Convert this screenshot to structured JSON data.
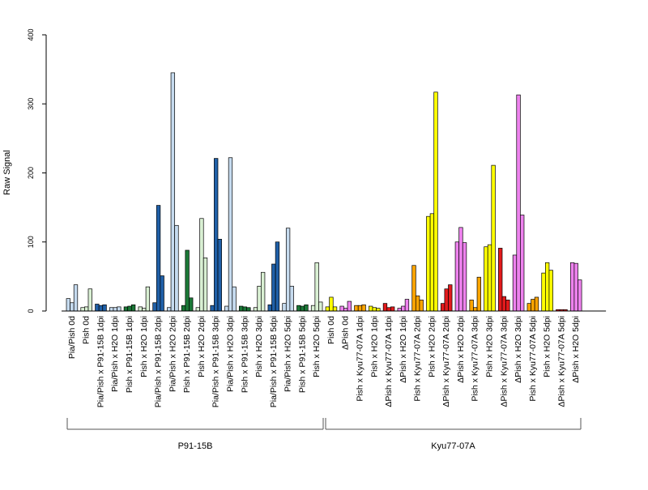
{
  "chart_data": {
    "type": "bar",
    "ylabel": "Raw Signal",
    "ylim": [
      0,
      400
    ],
    "yticks": [
      "0",
      "100",
      "200",
      "300",
      "400"
    ],
    "grid": false,
    "groups": [
      {
        "label": "P91-15B"
      },
      {
        "label": "Kyu77-07A"
      }
    ],
    "colors": {
      "light_blue": "#c6dbef",
      "dark_blue": "#2060a8",
      "light_green": "#d9f0d3",
      "dark_green": "#1b7837",
      "yellow": "#ffff00",
      "violet": "#ee82ee",
      "orange": "#ffa500",
      "red": "#e31a1c"
    },
    "categories": [
      {
        "label": "Pia/Pish 0d",
        "color": "light_blue",
        "values": [
          18,
          12,
          38
        ]
      },
      {
        "label": "Pish 0d",
        "color": "light_green",
        "values": [
          5,
          6,
          32
        ]
      },
      {
        "label": "Pia/Pish x P91-15B 1dpi",
        "color": "dark_blue",
        "values": [
          10,
          8,
          9
        ]
      },
      {
        "label": "Pia/Pish x H2O 1dpi",
        "color": "light_blue",
        "values": [
          5,
          5,
          6
        ]
      },
      {
        "label": "Pish x P91-15B 1dpi",
        "color": "dark_green",
        "values": [
          6,
          7,
          9
        ]
      },
      {
        "label": "Pish x H2O 1dpi",
        "color": "light_green",
        "values": [
          6,
          4,
          35
        ]
      },
      {
        "label": "Pia/Pish x P91-15B 2dpi",
        "color": "dark_blue",
        "values": [
          12,
          153,
          51
        ]
      },
      {
        "label": "Pia/Pish x H2O 2dpi",
        "color": "light_blue",
        "values": [
          5,
          345,
          124
        ]
      },
      {
        "label": "Pish x P91-15B 2dpi",
        "color": "dark_green",
        "values": [
          8,
          88,
          19
        ]
      },
      {
        "label": "Pish x H2O 2dpi",
        "color": "light_green",
        "values": [
          5,
          134,
          77
        ]
      },
      {
        "label": "Pia/Pish x P91-15B 3dpi",
        "color": "dark_blue",
        "values": [
          8,
          221,
          104
        ]
      },
      {
        "label": "Pia/Pish x H2O 3dpi",
        "color": "light_blue",
        "values": [
          7,
          222,
          35
        ]
      },
      {
        "label": "Pish x P91-15B 3dpi",
        "color": "dark_green",
        "values": [
          7,
          6,
          5
        ]
      },
      {
        "label": "Pish x H2O 3dpi",
        "color": "light_green",
        "values": [
          5,
          36,
          56
        ]
      },
      {
        "label": "Pia/Pish x P91-15B 5dpi",
        "color": "dark_blue",
        "values": [
          9,
          68,
          100
        ]
      },
      {
        "label": "Pia/Pish x H2O 5dpi",
        "color": "light_blue",
        "values": [
          11,
          120,
          36
        ]
      },
      {
        "label": "Pish x P91-15B 5dpi",
        "color": "dark_green",
        "values": [
          8,
          7,
          9
        ]
      },
      {
        "label": "Pish x H2O 5dpi",
        "color": "light_green",
        "values": [
          8,
          70,
          13
        ]
      },
      {
        "label": "Pish 0d",
        "color": "yellow",
        "values": [
          6,
          20,
          6
        ]
      },
      {
        "label": "ΔPish 0d",
        "color": "violet",
        "values": [
          7,
          4,
          14
        ]
      },
      {
        "label": "Pish x Kyu77-07A 1dpi",
        "color": "orange",
        "values": [
          8,
          8,
          9
        ]
      },
      {
        "label": "Pish x H2O 1dpi",
        "color": "yellow",
        "values": [
          7,
          5,
          4
        ]
      },
      {
        "label": "ΔPish x Kyu77-07A 1dpi",
        "color": "red",
        "values": [
          11,
          5,
          6
        ]
      },
      {
        "label": "ΔPish x H2O 1dpi",
        "color": "violet",
        "values": [
          4,
          7,
          17
        ]
      },
      {
        "label": "Pish x Kyu77-07A 2dpi",
        "color": "orange",
        "values": [
          66,
          22,
          16
        ]
      },
      {
        "label": "Pish x H2O 2dpi",
        "color": "yellow",
        "values": [
          137,
          141,
          317
        ]
      },
      {
        "label": "ΔPish x Kyu77-07A 2dpi",
        "color": "red",
        "values": [
          11,
          32,
          38
        ]
      },
      {
        "label": "ΔPish x H2O 2dpi",
        "color": "violet",
        "values": [
          100,
          121,
          99
        ]
      },
      {
        "label": "Pish x Kyu77-07A 3dpi",
        "color": "orange",
        "values": [
          16,
          5,
          49
        ]
      },
      {
        "label": "Pish x H2O 3dpi",
        "color": "yellow",
        "values": [
          93,
          96,
          211
        ]
      },
      {
        "label": "ΔPish x Kyu77-07A 3dpi",
        "color": "red",
        "values": [
          91,
          21,
          16
        ]
      },
      {
        "label": "ΔPish x H2O 3dpi",
        "color": "violet",
        "values": [
          81,
          313,
          139
        ]
      },
      {
        "label": "Pish x Kyu77-07A 5dpi",
        "color": "orange",
        "values": [
          11,
          17,
          20
        ]
      },
      {
        "label": "Pish x H2O 5dpi",
        "color": "yellow",
        "values": [
          55,
          70,
          59
        ]
      },
      {
        "label": "ΔPish x Kyu77-07A 5dpi",
        "color": "red",
        "values": [
          2,
          2,
          2
        ]
      },
      {
        "label": "ΔPish x H2O 5dpi",
        "color": "violet",
        "values": [
          70,
          69,
          45
        ]
      }
    ]
  }
}
